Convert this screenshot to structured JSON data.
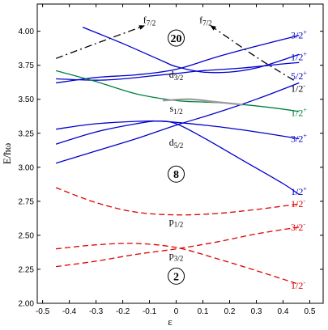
{
  "chart_data": {
    "type": "line",
    "xlabel": "ε",
    "ylabel": "E/ħω",
    "xlim": [
      -0.52,
      0.55
    ],
    "ylim": [
      2.0,
      4.2
    ],
    "xticks": [
      "-0.5",
      "-0.4",
      "-0.3",
      "-0.2",
      "-0.1",
      "0",
      "0.1",
      "0.2",
      "0.3",
      "0.4",
      "0.5"
    ],
    "yticks": [
      "2.00",
      "2.25",
      "2.50",
      "2.75",
      "3.00",
      "3.25",
      "3.50",
      "3.75",
      "4.00"
    ],
    "colors": {
      "blue": "#0000cc",
      "red": "#dd0000",
      "green": "#008040",
      "black": "#000000",
      "gray": "#999999"
    },
    "series": [
      {
        "color": "blue",
        "dash": false,
        "points": [
          [
            -0.35,
            4.03
          ],
          [
            -0.2,
            3.91
          ],
          [
            -0.05,
            3.78
          ],
          [
            0,
            3.74
          ],
          [
            0.1,
            3.7
          ],
          [
            0.2,
            3.7
          ],
          [
            0.3,
            3.73
          ],
          [
            0.4,
            3.79
          ],
          [
            0.46,
            3.83
          ]
        ]
      },
      {
        "color": "blue",
        "dash": false,
        "points": [
          [
            -0.45,
            3.62
          ],
          [
            -0.3,
            3.66
          ],
          [
            -0.15,
            3.68
          ],
          [
            0,
            3.72
          ],
          [
            0.15,
            3.81
          ],
          [
            0.3,
            3.89
          ],
          [
            0.46,
            3.97
          ]
        ]
      },
      {
        "color": "blue",
        "dash": false,
        "points": [
          [
            -0.45,
            3.65
          ],
          [
            -0.3,
            3.64
          ],
          [
            -0.2,
            3.65
          ],
          [
            -0.1,
            3.67
          ],
          [
            0,
            3.69
          ],
          [
            0.1,
            3.71
          ],
          [
            0.25,
            3.73
          ],
          [
            0.4,
            3.76
          ],
          [
            0.46,
            3.77
          ]
        ]
      },
      {
        "color": "blue",
        "dash": false,
        "points": [
          [
            -0.45,
            3.03
          ],
          [
            -0.3,
            3.12
          ],
          [
            -0.15,
            3.21
          ],
          [
            0,
            3.31
          ],
          [
            0.15,
            3.4
          ],
          [
            0.3,
            3.5
          ],
          [
            0.46,
            3.62
          ]
        ]
      },
      {
        "color": "blue",
        "dash": false,
        "points": [
          [
            -0.45,
            3.17
          ],
          [
            -0.3,
            3.26
          ],
          [
            -0.15,
            3.32
          ],
          [
            -0.07,
            3.34
          ],
          [
            0,
            3.32
          ],
          [
            0.1,
            3.22
          ],
          [
            0.25,
            3.05
          ],
          [
            0.4,
            2.88
          ],
          [
            0.46,
            2.8
          ]
        ]
      },
      {
        "color": "blue",
        "dash": false,
        "points": [
          [
            -0.45,
            3.28
          ],
          [
            -0.3,
            3.32
          ],
          [
            -0.1,
            3.34
          ],
          [
            0,
            3.33
          ],
          [
            0.15,
            3.3
          ],
          [
            0.3,
            3.26
          ],
          [
            0.46,
            3.21
          ]
        ]
      },
      {
        "color": "green",
        "dash": false,
        "points": [
          [
            -0.45,
            3.71
          ],
          [
            -0.3,
            3.63
          ],
          [
            -0.15,
            3.54
          ],
          [
            0,
            3.49
          ],
          [
            0.1,
            3.48
          ],
          [
            0.2,
            3.47
          ],
          [
            0.35,
            3.44
          ],
          [
            0.46,
            3.41
          ]
        ]
      },
      {
        "color": "gray",
        "dash": false,
        "points": [
          [
            -0.05,
            3.49
          ],
          [
            0.05,
            3.5
          ],
          [
            0.15,
            3.48
          ],
          [
            0.25,
            3.46
          ]
        ]
      },
      {
        "color": "red",
        "dash": true,
        "points": [
          [
            -0.45,
            2.85
          ],
          [
            -0.3,
            2.74
          ],
          [
            -0.15,
            2.67
          ],
          [
            0,
            2.65
          ],
          [
            0.15,
            2.66
          ],
          [
            0.3,
            2.69
          ],
          [
            0.46,
            2.73
          ]
        ]
      },
      {
        "color": "red",
        "dash": true,
        "points": [
          [
            -0.45,
            2.4
          ],
          [
            -0.3,
            2.43
          ],
          [
            -0.15,
            2.44
          ],
          [
            0,
            2.41
          ],
          [
            0.15,
            2.33
          ],
          [
            0.3,
            2.24
          ],
          [
            0.46,
            2.14
          ]
        ]
      },
      {
        "color": "red",
        "dash": true,
        "points": [
          [
            -0.45,
            2.27
          ],
          [
            -0.3,
            2.31
          ],
          [
            -0.15,
            2.36
          ],
          [
            0,
            2.4
          ],
          [
            0.15,
            2.45
          ],
          [
            0.3,
            2.51
          ],
          [
            0.46,
            2.56
          ]
        ]
      },
      {
        "color": "black",
        "dash": true,
        "arrow": true,
        "points": [
          [
            -0.45,
            3.8
          ],
          [
            -0.3,
            3.91
          ],
          [
            -0.12,
            4.04
          ]
        ]
      },
      {
        "color": "black",
        "dash": true,
        "arrow": true,
        "points": [
          [
            0.44,
            3.64
          ],
          [
            0.3,
            3.81
          ],
          [
            0.13,
            4.04
          ]
        ]
      }
    ],
    "shell_labels": [
      {
        "text": "d",
        "sub": "3/2",
        "x": 0,
        "y": 3.66
      },
      {
        "text": "s",
        "sub": "1/2",
        "x": 0,
        "y": 3.41
      },
      {
        "text": "d",
        "sub": "5/2",
        "x": 0,
        "y": 3.16
      },
      {
        "text": "p",
        "sub": "1/2",
        "x": 0,
        "y": 2.58
      },
      {
        "text": "p",
        "sub": "3/2",
        "x": 0,
        "y": 2.33
      }
    ],
    "top_labels": [
      {
        "text": "f",
        "sub": "7/2",
        "x": -0.1,
        "y": 4.06
      },
      {
        "text": "f",
        "sub": "7/2",
        "x": 0.11,
        "y": 4.06
      }
    ],
    "magic_numbers": [
      {
        "text": "20",
        "x": 0,
        "y": 3.95
      },
      {
        "text": "8",
        "x": 0,
        "y": 2.95
      },
      {
        "text": "2",
        "x": 0,
        "y": 2.2
      }
    ],
    "level_labels": [
      {
        "text": "3/2",
        "sign": "+",
        "color": "blue",
        "y": 3.97
      },
      {
        "text": "1/2",
        "sign": "+",
        "color": "blue",
        "y": 3.81
      },
      {
        "text": "5/2",
        "sign": "+",
        "color": "blue",
        "y": 3.67
      },
      {
        "text": "1/2",
        "sign": "-",
        "color": "black",
        "y": 3.58
      },
      {
        "text": "1/2",
        "sign": "+",
        "color": "green",
        "y": 3.4
      },
      {
        "text": "3/2",
        "sign": "+",
        "color": "blue",
        "y": 3.21
      },
      {
        "text": "1/2",
        "sign": "+",
        "color": "blue",
        "y": 2.82
      },
      {
        "text": "1/2",
        "sign": "-",
        "color": "red",
        "y": 2.73
      },
      {
        "text": "3/2",
        "sign": "-",
        "color": "red",
        "y": 2.56
      },
      {
        "text": "1/2",
        "sign": "-",
        "color": "red",
        "y": 2.13
      }
    ]
  }
}
